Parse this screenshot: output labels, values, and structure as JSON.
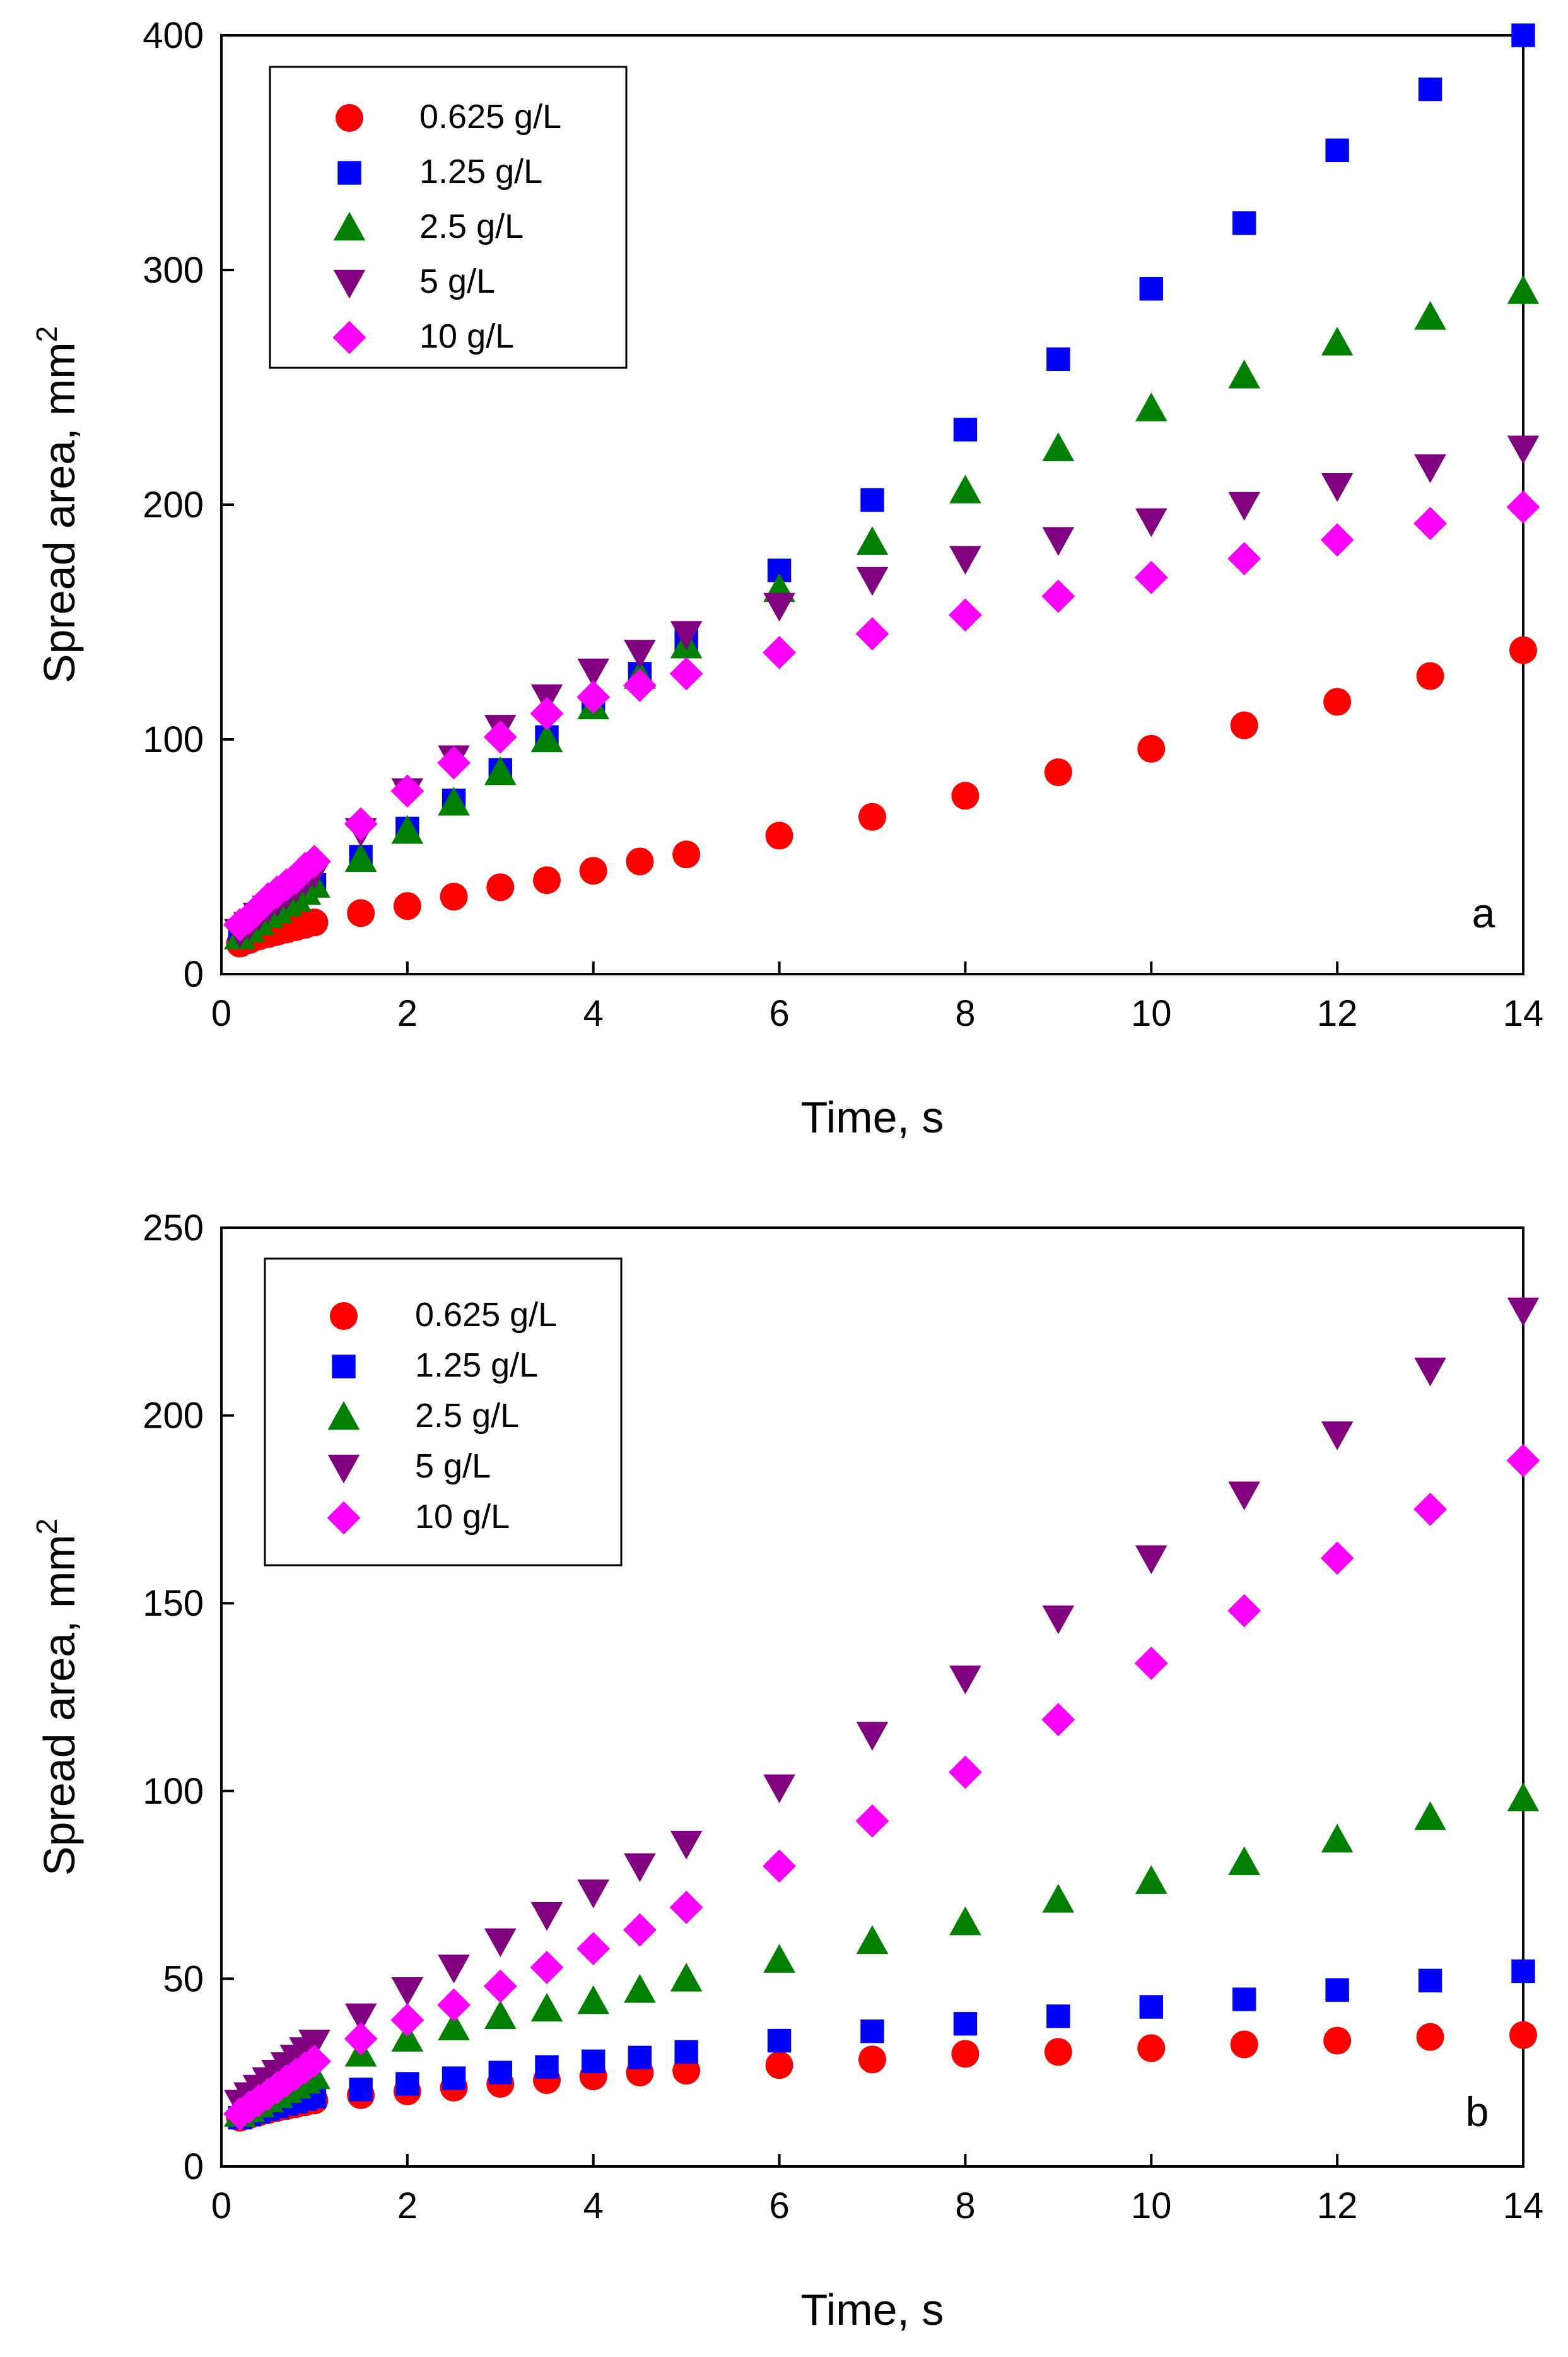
{
  "chart_data": [
    {
      "panel": "a",
      "type": "scatter",
      "xlabel": "Time, s",
      "ylabel": "Spread area, mm",
      "ylabel_superscript": "2",
      "xlim": [
        0,
        14
      ],
      "ylim": [
        0,
        400
      ],
      "xticks": [
        0,
        2,
        4,
        6,
        8,
        10,
        12,
        14
      ],
      "yticks": [
        0,
        100,
        200,
        300,
        400
      ],
      "grid": false,
      "legend_position": "top-left",
      "panel_label": "a",
      "x": [
        0.2,
        0.3,
        0.4,
        0.5,
        0.6,
        0.7,
        0.8,
        0.9,
        1,
        1.5,
        2,
        2.5,
        3,
        3.5,
        4,
        4.5,
        5,
        6,
        7,
        8,
        9,
        10,
        11,
        12,
        13,
        14
      ],
      "series": [
        {
          "name": "0.625 g/L",
          "marker": "circle",
          "color": "#ff0000",
          "values": [
            13,
            14.5,
            16,
            17,
            18,
            19,
            20,
            21,
            22,
            26,
            29,
            33,
            37,
            40,
            44,
            48,
            51,
            59,
            67,
            76,
            86,
            96,
            106,
            116,
            127,
            138
          ]
        },
        {
          "name": "1.25 g/L",
          "marker": "square",
          "color": "#0000ff",
          "values": [
            16,
            19,
            22,
            25,
            27,
            30,
            32,
            35,
            38,
            50,
            62,
            74,
            87,
            101,
            115,
            128,
            142,
            172,
            202,
            232,
            262,
            292,
            320,
            351,
            377,
            400
          ]
        },
        {
          "name": "2.5 g/L",
          "marker": "triangle-up",
          "color": "#008000",
          "values": [
            16,
            19,
            22,
            25,
            27,
            30,
            32,
            35,
            38,
            49,
            61,
            73,
            86,
            100,
            114,
            127,
            140,
            164,
            184,
            206,
            224,
            241,
            255,
            269,
            280,
            291
          ]
        },
        {
          "name": "5 g/L",
          "marker": "triangle-down",
          "color": "#800080",
          "values": [
            18,
            21,
            25,
            28,
            31,
            34,
            37,
            40,
            43,
            61,
            78,
            92,
            105,
            118,
            129,
            137,
            145,
            157,
            168,
            177,
            185,
            193,
            200,
            208,
            216,
            224
          ]
        },
        {
          "name": "10 g/L",
          "marker": "diamond",
          "color": "#ff00ff",
          "values": [
            21,
            24,
            28,
            32,
            35,
            38,
            41,
            45,
            48,
            64,
            78,
            90,
            101,
            111,
            118,
            123,
            128,
            137,
            145,
            153,
            161,
            169,
            177,
            185,
            192,
            199
          ]
        }
      ]
    },
    {
      "panel": "b",
      "type": "scatter",
      "xlabel": "Time, s",
      "ylabel": "Spread area, mm",
      "ylabel_superscript": "2",
      "xlim": [
        0,
        14
      ],
      "ylim": [
        0,
        250
      ],
      "xticks": [
        0,
        2,
        4,
        6,
        8,
        10,
        12,
        14
      ],
      "yticks": [
        0,
        50,
        100,
        150,
        200,
        250
      ],
      "grid": false,
      "legend_position": "top-left",
      "panel_label": "b",
      "x": [
        0.2,
        0.3,
        0.4,
        0.5,
        0.6,
        0.7,
        0.8,
        0.9,
        1,
        1.5,
        2,
        2.5,
        3,
        3.5,
        4,
        4.5,
        5,
        6,
        7,
        8,
        9,
        10,
        11,
        12,
        13,
        14
      ],
      "series": [
        {
          "name": "0.625 g/L",
          "marker": "circle",
          "color": "#ff0000",
          "values": [
            13,
            13.7,
            14.4,
            15,
            15.6,
            16.1,
            16.6,
            17.1,
            17.6,
            19,
            20,
            21,
            22,
            23,
            24,
            25,
            25.5,
            27,
            28.5,
            30,
            30.5,
            31.5,
            32.5,
            33.5,
            34.5,
            35
          ]
        },
        {
          "name": "1.25 g/L",
          "marker": "square",
          "color": "#0000ff",
          "values": [
            13,
            13.8,
            14.6,
            15.3,
            16,
            16.7,
            17.3,
            18,
            18.6,
            20.5,
            22,
            23.5,
            25,
            26.5,
            28,
            29,
            30.5,
            33.5,
            36,
            38,
            40,
            42.5,
            44.5,
            47,
            49.5,
            52
          ]
        },
        {
          "name": "2.5 g/L",
          "marker": "triangle-up",
          "color": "#008000",
          "values": [
            14,
            15.2,
            16.5,
            17.8,
            19,
            20.3,
            21.5,
            22.8,
            24,
            30,
            34,
            37,
            40,
            42,
            44,
            47,
            50,
            55,
            60,
            65,
            71,
            76,
            81,
            87,
            93,
            98
          ]
        },
        {
          "name": "5 g/L",
          "marker": "triangle-down",
          "color": "#800080",
          "values": [
            17,
            19,
            21,
            23,
            25,
            27,
            29,
            31,
            33,
            40,
            47,
            53,
            60,
            67,
            73,
            80,
            86,
            101,
            115,
            130,
            146,
            162,
            179,
            195,
            212,
            228
          ]
        },
        {
          "name": "10 g/L",
          "marker": "diamond",
          "color": "#ff00ff",
          "values": [
            14,
            15.8,
            17.5,
            19.2,
            21,
            22.8,
            24.5,
            26.2,
            28,
            34,
            39,
            43,
            48,
            53,
            58,
            63,
            69,
            80,
            92,
            105,
            119,
            134,
            148,
            162,
            175,
            188
          ]
        }
      ]
    }
  ]
}
